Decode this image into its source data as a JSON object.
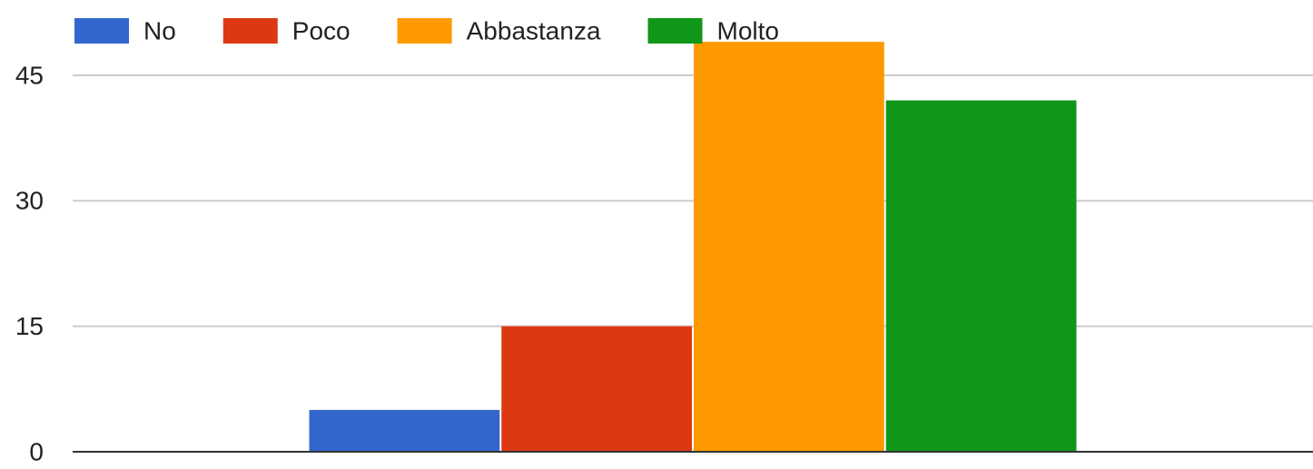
{
  "chart_data": {
    "type": "bar",
    "categories": [
      null
    ],
    "series": [
      {
        "name": "No",
        "color": "#3366cc",
        "values": [
          5
        ]
      },
      {
        "name": "Poco",
        "color": "#dc3912",
        "values": [
          15
        ]
      },
      {
        "name": "Abbastanza",
        "color": "#ff9900",
        "values": [
          49
        ]
      },
      {
        "name": "Molto",
        "color": "#109618",
        "values": [
          42
        ]
      }
    ],
    "ylim": [
      0,
      54
    ],
    "yticks": [
      0,
      15,
      30,
      45
    ],
    "grid": true,
    "legend": "top"
  }
}
